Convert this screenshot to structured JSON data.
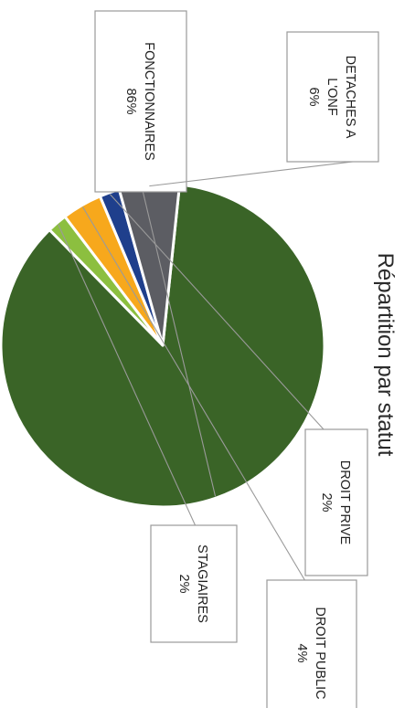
{
  "chart_data": {
    "type": "pie",
    "title": "Répartition par statut",
    "slices": [
      {
        "category": "FONCTIONNAIRES",
        "value": 86,
        "label": "86%",
        "color": "#3a6427"
      },
      {
        "category": "DETACHES A L'ONF",
        "category_lines": [
          "DETACHES A",
          "L'ONF"
        ],
        "value": 6,
        "label": "6%",
        "color": "#5c5d63"
      },
      {
        "category": "DROIT PRIVE",
        "value": 2,
        "label": "2%",
        "color": "#1f3f8c"
      },
      {
        "category": "DROIT PUBLIC",
        "value": 4,
        "label": "4%",
        "color": "#f7a81c"
      },
      {
        "category": "STAGIAIRES",
        "value": 2,
        "label": "2%",
        "color": "#8cbf3f"
      }
    ],
    "legend": "none",
    "label_style": "callout boxes with leader lines"
  }
}
